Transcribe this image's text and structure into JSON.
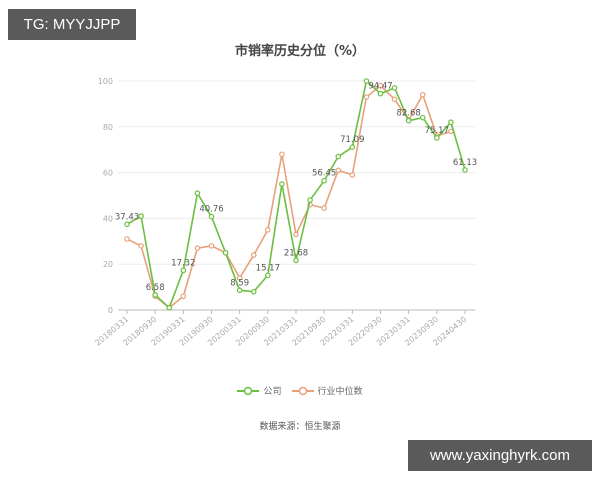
{
  "watermarks": {
    "top": "TG: MYYJJPP",
    "bottom": "www.yaxinghyrk.com"
  },
  "title": "市销率历史分位（%）",
  "legend": {
    "company": "公司",
    "industry": "行业中位数"
  },
  "source": "数据来源：恒生聚源",
  "colors": {
    "company": "#6abf40",
    "industry": "#e8a07a",
    "grid": "#ececec",
    "axis": "#bbbbbb",
    "tick_text": "#aaaaaa",
    "label_text": "#555555"
  },
  "chart_data": {
    "type": "line",
    "title": "市销率历史分位（%）",
    "xlabel": "",
    "ylabel": "",
    "ylim": [
      0,
      100
    ],
    "yticks": [
      0,
      20,
      40,
      60,
      80,
      100
    ],
    "grid": true,
    "legend_position": "bottom",
    "x": [
      "20180331",
      "20180630",
      "20180930",
      "20181231",
      "20190331",
      "20190630",
      "20190930",
      "20191231",
      "20200331",
      "20200630",
      "20200930",
      "20201231",
      "20210331",
      "20210630",
      "20210930",
      "20211231",
      "20220331",
      "20220630",
      "20220930",
      "20221231",
      "20230331",
      "20230630",
      "20230930",
      "20231231",
      "20240430"
    ],
    "tick_labels": [
      "20180331",
      "20180930",
      "20190331",
      "20190930",
      "20200331",
      "20200930",
      "20210331",
      "20210930",
      "20220331",
      "20220930",
      "20230331",
      "20230930",
      "20240430"
    ],
    "series": [
      {
        "name": "公司",
        "values": [
          37.43,
          41,
          6.58,
          1,
          17.32,
          51,
          40.76,
          25,
          8.59,
          8,
          15.17,
          55,
          21.68,
          48,
          56.45,
          67,
          71.09,
          100,
          94.47,
          97,
          82.68,
          84,
          75.17,
          82,
          61.13
        ]
      },
      {
        "name": "行业中位数",
        "values": [
          31,
          28,
          6,
          1,
          6,
          27,
          28,
          25,
          14,
          24,
          35,
          68,
          33,
          46,
          44.5,
          61,
          59,
          93,
          98,
          92,
          83,
          94,
          76,
          78,
          null
        ]
      }
    ],
    "data_labels": [
      {
        "index": 0,
        "value": "37.43"
      },
      {
        "index": 2,
        "value": "6.58"
      },
      {
        "index": 4,
        "value": "17.32"
      },
      {
        "index": 6,
        "value": "40.76"
      },
      {
        "index": 8,
        "value": "8.59"
      },
      {
        "index": 10,
        "value": "15.17"
      },
      {
        "index": 12,
        "value": "21.68"
      },
      {
        "index": 14,
        "value": "56.45"
      },
      {
        "index": 16,
        "value": "71.09"
      },
      {
        "index": 18,
        "value": "94.47"
      },
      {
        "index": 20,
        "value": "82.68"
      },
      {
        "index": 22,
        "value": "75.17"
      },
      {
        "index": 24,
        "value": "61.13"
      }
    ]
  }
}
